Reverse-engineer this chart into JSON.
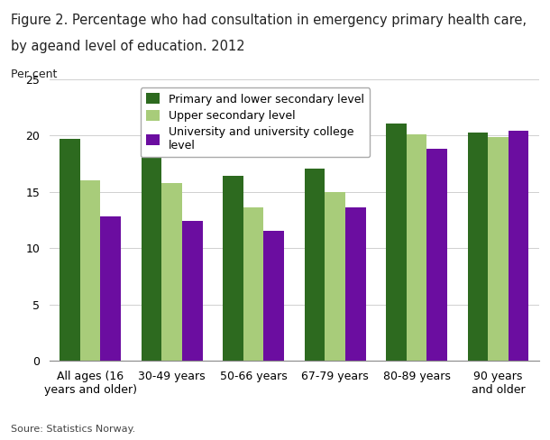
{
  "title_line1": "Figure 2. Percentage who had consultation in emergency primary health care,",
  "title_line2": "by ageand level of education. 2012",
  "ylabel": "Per cent",
  "source": "Soure: Statistics Norway.",
  "categories": [
    "All ages (16\nyears and older)",
    "30-49 years",
    "50-66 years",
    "67-79 years",
    "80-89 years",
    "90 years\nand older"
  ],
  "series": [
    {
      "name": "Primary and lower secondary level",
      "values": [
        19.7,
        20.3,
        16.4,
        17.1,
        21.1,
        20.3
      ],
      "color": "#2d6a1f"
    },
    {
      "name": "Upper secondary level",
      "values": [
        16.0,
        15.8,
        13.6,
        15.0,
        20.1,
        19.9
      ],
      "color": "#a8cc7a"
    },
    {
      "name": "University and university college\nlevel",
      "values": [
        12.8,
        12.4,
        11.5,
        13.6,
        18.8,
        20.4
      ],
      "color": "#6b0da0"
    }
  ],
  "ylim": [
    0,
    25
  ],
  "yticks": [
    0,
    5,
    10,
    15,
    20,
    25
  ],
  "bar_width": 0.25,
  "background_color": "#ffffff",
  "grid_color": "#d0d0d0",
  "title_fontsize": 10.5,
  "tick_fontsize": 9,
  "legend_fontsize": 9,
  "source_fontsize": 8
}
